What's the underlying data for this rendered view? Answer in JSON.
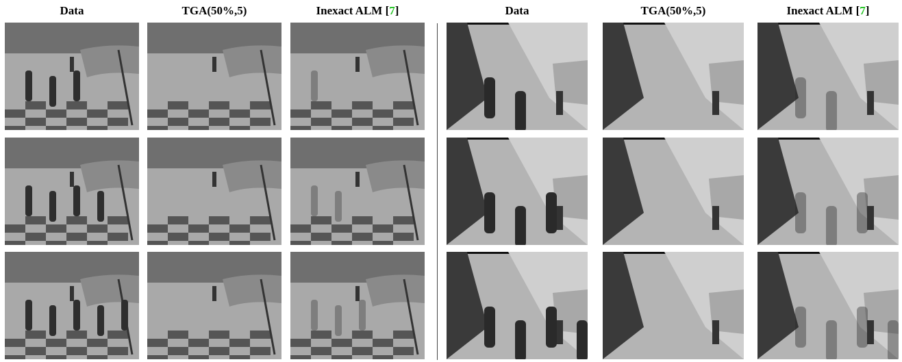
{
  "columns": [
    {
      "label": "Data"
    },
    {
      "label": "TGA(50%,5)"
    },
    {
      "label": "Inexact ALM [",
      "cite": "7",
      "label_end": "]"
    }
  ]
}
